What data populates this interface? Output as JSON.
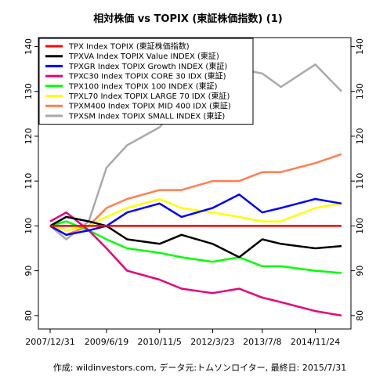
{
  "chart_data": {
    "type": "line",
    "title": "相対株価 vs TOPIX (東証株価指数) (1)",
    "caption": "作成: wildinvestors.com, データ元:トムソンロイター, 最終日: 2015/7/31",
    "xlabel": "",
    "ylabel": "",
    "x_ticks": [
      "2007/12/31",
      "2009/6/19",
      "2010/11/5",
      "2012/3/23",
      "2013/7/8",
      "2014/11/24"
    ],
    "x_range": [
      "2007/12/31",
      "2015/7/31"
    ],
    "ylim": [
      77,
      142
    ],
    "y_ticks": [
      80,
      90,
      100,
      110,
      120,
      130,
      140
    ],
    "grid": false,
    "legend_position": "top-left",
    "series": [
      {
        "name": "TPX Index TOPIX (東証株価指数)",
        "color": "#ff0000",
        "points": [
          [
            "2007/12/31",
            100
          ],
          [
            "2015/7/31",
            100
          ]
        ]
      },
      {
        "name": "TPXVA Index TOPIX Value INDEX (東証)",
        "color": "#000000",
        "points": [
          [
            "2007/12/31",
            100
          ],
          [
            "2008/6/1",
            102
          ],
          [
            "2009/1/1",
            101
          ],
          [
            "2009/6/19",
            100
          ],
          [
            "2010/1/1",
            97
          ],
          [
            "2010/11/5",
            96
          ],
          [
            "2011/6/1",
            98
          ],
          [
            "2012/3/23",
            96
          ],
          [
            "2012/12/1",
            93
          ],
          [
            "2013/7/8",
            97
          ],
          [
            "2014/1/1",
            96
          ],
          [
            "2014/11/24",
            95
          ],
          [
            "2015/7/31",
            95.5
          ]
        ]
      },
      {
        "name": "TPXGR Index TOPIX Growth INDEX (東証)",
        "color": "#0000ff",
        "points": [
          [
            "2007/12/31",
            100
          ],
          [
            "2008/6/1",
            98
          ],
          [
            "2009/1/1",
            99
          ],
          [
            "2009/6/19",
            100
          ],
          [
            "2010/1/1",
            103
          ],
          [
            "2010/11/5",
            105
          ],
          [
            "2011/6/1",
            102
          ],
          [
            "2012/3/23",
            104
          ],
          [
            "2012/12/1",
            107
          ],
          [
            "2013/7/8",
            103
          ],
          [
            "2014/1/1",
            104
          ],
          [
            "2014/11/24",
            106
          ],
          [
            "2015/7/31",
            105
          ]
        ]
      },
      {
        "name": "TPXC30 Index TOPIX CORE 30 IDX (東証)",
        "color": "#e5007f",
        "points": [
          [
            "2007/12/31",
            101
          ],
          [
            "2008/6/1",
            103
          ],
          [
            "2009/1/1",
            99
          ],
          [
            "2009/6/19",
            95
          ],
          [
            "2010/1/1",
            90
          ],
          [
            "2010/11/5",
            88
          ],
          [
            "2011/6/1",
            86
          ],
          [
            "2012/3/23",
            85
          ],
          [
            "2012/12/1",
            86
          ],
          [
            "2013/7/8",
            84
          ],
          [
            "2014/1/1",
            83
          ],
          [
            "2014/11/24",
            81
          ],
          [
            "2015/7/31",
            80
          ]
        ]
      },
      {
        "name": "TPX100 Index TOPIX 100 INDEX (東証)",
        "color": "#00ff00",
        "points": [
          [
            "2007/12/31",
            100
          ],
          [
            "2008/6/1",
            101
          ],
          [
            "2009/1/1",
            99
          ],
          [
            "2009/6/19",
            97
          ],
          [
            "2010/1/1",
            95
          ],
          [
            "2010/11/5",
            94
          ],
          [
            "2011/6/1",
            93
          ],
          [
            "2012/3/23",
            92
          ],
          [
            "2012/12/1",
            93
          ],
          [
            "2013/7/8",
            91
          ],
          [
            "2014/1/1",
            91
          ],
          [
            "2014/11/24",
            90
          ],
          [
            "2015/7/31",
            89.5
          ]
        ]
      },
      {
        "name": "TPXL70 Index TOPIX LARGE 70 IDX (東証)",
        "color": "#ffff00",
        "points": [
          [
            "2007/12/31",
            100
          ],
          [
            "2008/6/1",
            99
          ],
          [
            "2009/1/1",
            100
          ],
          [
            "2009/6/19",
            102
          ],
          [
            "2010/1/1",
            104
          ],
          [
            "2010/11/5",
            106
          ],
          [
            "2011/6/1",
            104
          ],
          [
            "2012/3/23",
            103
          ],
          [
            "2012/12/1",
            102
          ],
          [
            "2013/7/8",
            101
          ],
          [
            "2014/1/1",
            101
          ],
          [
            "2014/11/24",
            104
          ],
          [
            "2015/7/31",
            105
          ]
        ]
      },
      {
        "name": "TPXM400 Index TOPIX MID 400 IDX (東証)",
        "color": "#ff7f50",
        "points": [
          [
            "2007/12/31",
            100
          ],
          [
            "2008/6/1",
            98
          ],
          [
            "2009/1/1",
            100
          ],
          [
            "2009/6/19",
            104
          ],
          [
            "2010/1/1",
            106
          ],
          [
            "2010/11/5",
            108
          ],
          [
            "2011/6/1",
            108
          ],
          [
            "2012/3/23",
            110
          ],
          [
            "2012/12/1",
            110
          ],
          [
            "2013/7/8",
            112
          ],
          [
            "2014/1/1",
            112
          ],
          [
            "2014/11/24",
            114
          ],
          [
            "2015/7/31",
            116
          ]
        ]
      },
      {
        "name": "TPXSM Index TOPIX SMALL INDEX (東証)",
        "color": "#aaaaaa",
        "points": [
          [
            "2007/12/31",
            100
          ],
          [
            "2008/6/1",
            97
          ],
          [
            "2009/1/1",
            101
          ],
          [
            "2009/6/19",
            113
          ],
          [
            "2010/1/1",
            118
          ],
          [
            "2010/11/5",
            122
          ],
          [
            "2011/6/1",
            128
          ],
          [
            "2012/3/23",
            132
          ],
          [
            "2012/12/1",
            135
          ],
          [
            "2013/7/8",
            134
          ],
          [
            "2014/1/1",
            131
          ],
          [
            "2014/11/24",
            136
          ],
          [
            "2015/7/31",
            130
          ]
        ]
      }
    ]
  }
}
